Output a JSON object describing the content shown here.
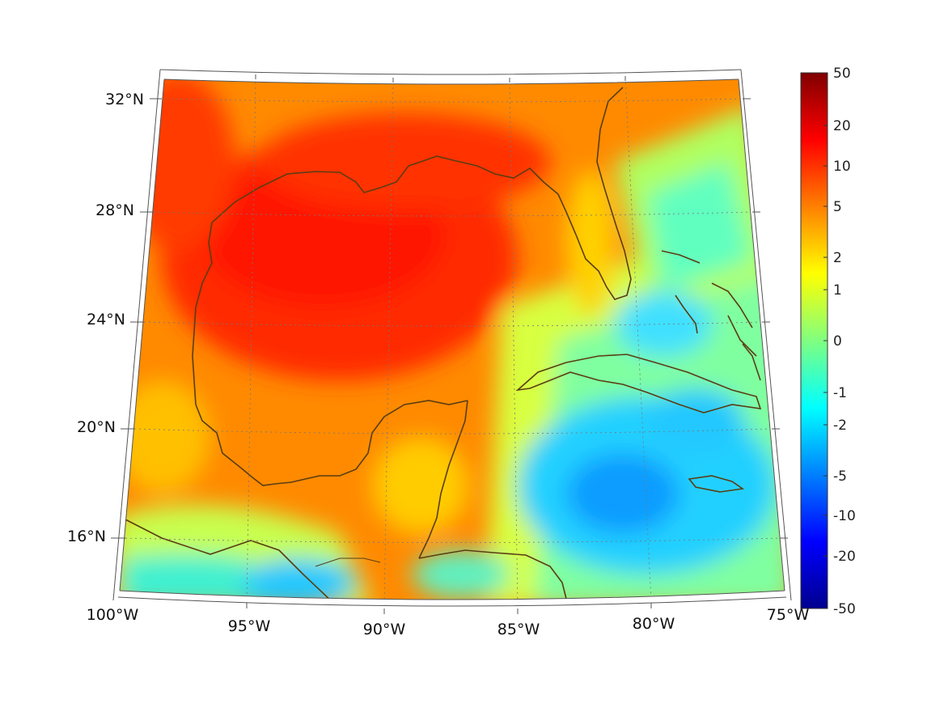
{
  "map": {
    "lon_ticks": [
      "100°W",
      "95°W",
      "90°W",
      "85°W",
      "80°W",
      "75°W"
    ],
    "lat_ticks": [
      "32°N",
      "28°N",
      "24°N",
      "20°N",
      "16°N"
    ],
    "extent": {
      "lon": [
        -100,
        -75
      ],
      "lat": [
        14,
        33
      ]
    }
  },
  "colorbar": {
    "tick_labels": [
      "50",
      "20",
      "10",
      "5",
      "2",
      "1",
      "0",
      "-1",
      "-2",
      "-5",
      "-10",
      "-20",
      "-50"
    ],
    "range": [
      -50,
      50
    ],
    "colormap": "jet",
    "colors": [
      "#00008f",
      "#0000ff",
      "#0080ff",
      "#00ffff",
      "#80ff80",
      "#ffff00",
      "#ff8000",
      "#ff0000",
      "#800000"
    ]
  },
  "colors": {
    "coastline": "#5a3d12",
    "frame": "#555555"
  }
}
